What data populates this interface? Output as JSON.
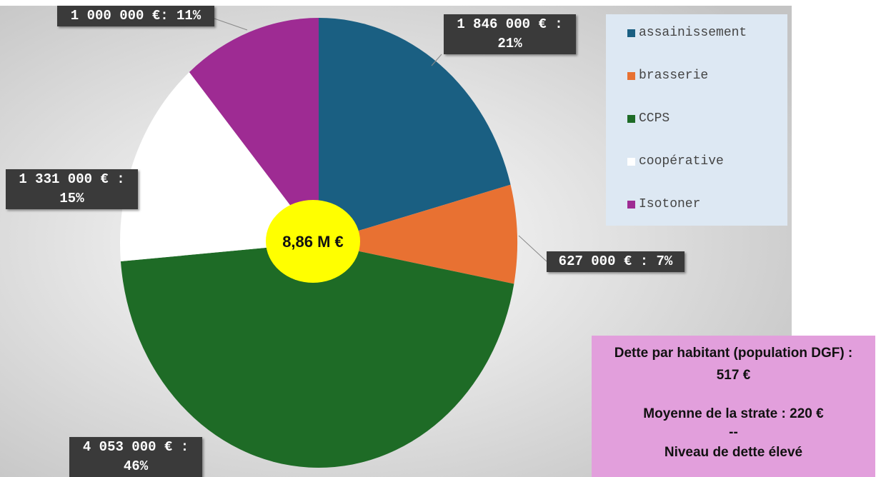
{
  "chart_data": {
    "type": "pie",
    "categories": [
      "assainissement",
      "brasserie",
      "CCPS",
      "coopérative",
      "Isotoner"
    ],
    "values": [
      1846000,
      627000,
      4053000,
      1331000,
      1000000
    ],
    "value_labels": [
      "1 846 000 € : 21%",
      "627 000 € : 7%",
      "4 053 000 € : 46%",
      "1 331 000 € : 15%",
      "1 000 000 €: 11%"
    ],
    "colors": [
      "#1a5f82",
      "#e87132",
      "#1e6b26",
      "#ffffff",
      "#9e2b93"
    ],
    "legend": "top-right",
    "center_label": "8,86 M €",
    "info_box": [
      "Dette par habitant (population DGF) :",
      "517 €",
      "Moyenne de la strate : 220 €",
      "--",
      "Niveau de dette élevé"
    ]
  }
}
